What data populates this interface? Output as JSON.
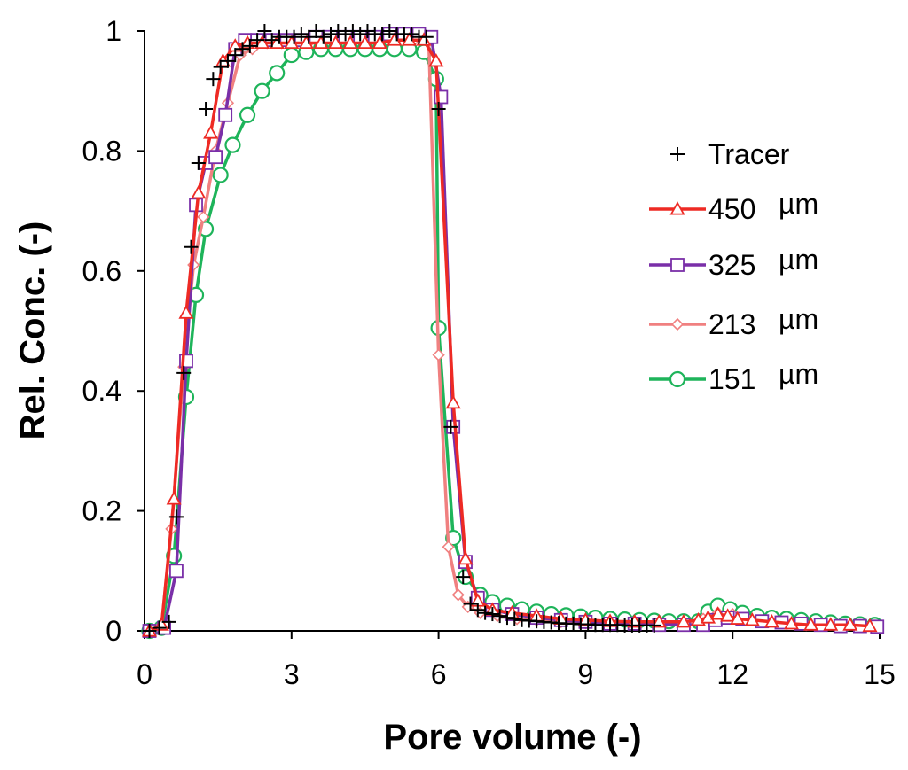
{
  "chart_data": {
    "type": "line",
    "title": "",
    "xlabel": "Pore volume (-)",
    "ylabel": "Rel. Conc. (-)",
    "xlim": [
      0,
      15
    ],
    "ylim": [
      0,
      1
    ],
    "xticks": [
      0,
      3,
      6,
      9,
      12,
      15
    ],
    "yticks": [
      0,
      0.2,
      0.4,
      0.6,
      0.8,
      1
    ],
    "xtick_labels": [
      "0",
      "3",
      "6",
      "9",
      "12",
      "15"
    ],
    "ytick_labels": [
      "0",
      "0.2",
      "0.4",
      "0.6",
      "0.8",
      "1"
    ],
    "grid": false,
    "legend_position": "right",
    "legend_unit": "µm",
    "series": [
      {
        "name": "Tracer",
        "label_number": "",
        "label_unit": "",
        "color": "#000000",
        "marker": "plus",
        "line": false,
        "x": [
          0.1,
          0.3,
          0.5,
          0.65,
          0.8,
          0.95,
          1.1,
          1.25,
          1.4,
          1.55,
          1.7,
          1.85,
          2.0,
          2.15,
          2.3,
          2.45,
          2.6,
          2.75,
          2.9,
          3.05,
          3.2,
          3.35,
          3.5,
          3.65,
          3.8,
          3.95,
          4.1,
          4.25,
          4.4,
          4.55,
          4.7,
          4.85,
          5.0,
          5.15,
          5.3,
          5.45,
          5.6,
          5.75,
          6.0,
          6.25,
          6.5,
          6.65,
          6.8,
          6.95,
          7.1,
          7.25,
          7.4,
          7.55,
          7.7,
          7.85,
          8.0,
          8.15,
          8.3,
          8.45,
          8.6,
          8.75,
          8.9,
          9.05,
          9.2,
          9.35,
          9.5,
          9.65,
          9.8,
          9.95,
          10.1,
          10.25,
          10.4
        ],
        "y": [
          0.0,
          0.005,
          0.015,
          0.19,
          0.43,
          0.64,
          0.78,
          0.87,
          0.92,
          0.94,
          0.95,
          0.96,
          0.97,
          0.975,
          0.985,
          1.0,
          0.985,
          0.99,
          0.99,
          0.99,
          0.995,
          0.99,
          1.0,
          0.99,
          0.995,
          1.0,
          0.995,
          1.0,
          0.995,
          1.0,
          0.995,
          0.995,
          1.0,
          0.995,
          0.995,
          0.995,
          0.99,
          0.99,
          0.87,
          0.34,
          0.09,
          0.045,
          0.035,
          0.03,
          0.028,
          0.025,
          0.022,
          0.02,
          0.018,
          0.017,
          0.016,
          0.015,
          0.014,
          0.013,
          0.012,
          0.012,
          0.011,
          0.011,
          0.01,
          0.01,
          0.01,
          0.01,
          0.009,
          0.009,
          0.009,
          0.009,
          0.009
        ]
      },
      {
        "name": "450 µm",
        "label_number": "450",
        "label_unit": "µm",
        "color": "#ee2a24",
        "marker": "triangle",
        "line": true,
        "x": [
          0.1,
          0.35,
          0.6,
          0.85,
          1.1,
          1.35,
          1.6,
          1.85,
          2.1,
          2.4,
          2.7,
          3.0,
          3.3,
          3.6,
          3.9,
          4.2,
          4.5,
          4.8,
          5.1,
          5.4,
          5.7,
          5.95,
          6.3,
          6.55,
          6.8,
          7.1,
          7.5,
          8.0,
          8.5,
          9.0,
          9.5,
          10.0,
          10.5,
          11.0,
          11.3,
          11.5,
          11.7,
          11.9,
          12.1,
          12.4,
          12.8,
          13.2,
          13.6,
          14.0,
          14.4,
          14.8
        ],
        "y": [
          0.0,
          0.01,
          0.22,
          0.53,
          0.73,
          0.83,
          0.95,
          0.975,
          0.98,
          0.98,
          0.98,
          0.98,
          0.98,
          0.98,
          0.98,
          0.98,
          0.98,
          0.98,
          0.985,
          0.985,
          0.985,
          0.95,
          0.38,
          0.12,
          0.05,
          0.035,
          0.03,
          0.025,
          0.02,
          0.018,
          0.016,
          0.015,
          0.015,
          0.015,
          0.018,
          0.022,
          0.028,
          0.025,
          0.02,
          0.018,
          0.015,
          0.012,
          0.01,
          0.01,
          0.01,
          0.008
        ]
      },
      {
        "name": "325 µm",
        "label_number": "325",
        "label_unit": "µm",
        "color": "#7a2fa8",
        "marker": "square",
        "line": true,
        "x": [
          0.1,
          0.4,
          0.65,
          0.85,
          1.05,
          1.25,
          1.45,
          1.65,
          1.85,
          2.05,
          2.3,
          2.6,
          2.9,
          3.2,
          3.5,
          3.8,
          4.1,
          4.4,
          4.7,
          5.0,
          5.3,
          5.6,
          5.85,
          6.05,
          6.3,
          6.55,
          6.8,
          7.1,
          7.5,
          8.0,
          8.5,
          9.0,
          9.5,
          10.0,
          10.5,
          11.0,
          11.4,
          11.65,
          11.9,
          12.2,
          12.6,
          13.0,
          13.4,
          13.8,
          14.2,
          14.6,
          14.95
        ],
        "y": [
          0.0,
          0.005,
          0.1,
          0.45,
          0.71,
          0.78,
          0.79,
          0.86,
          0.97,
          0.985,
          0.985,
          0.985,
          0.985,
          0.985,
          0.99,
          0.99,
          0.99,
          0.99,
          0.99,
          0.995,
          0.995,
          0.995,
          0.99,
          0.89,
          0.34,
          0.115,
          0.055,
          0.035,
          0.028,
          0.022,
          0.018,
          0.015,
          0.012,
          0.012,
          0.01,
          0.01,
          0.01,
          0.018,
          0.022,
          0.02,
          0.016,
          0.014,
          0.012,
          0.01,
          0.008,
          0.008,
          0.007
        ]
      },
      {
        "name": "213 µm",
        "label_number": "213",
        "label_unit": "µm",
        "color": "#f08080",
        "marker": "diamond",
        "line": true,
        "x": [
          0.1,
          0.35,
          0.55,
          0.8,
          1.0,
          1.2,
          1.45,
          1.7,
          1.95,
          2.2,
          2.5,
          2.8,
          3.1,
          3.4,
          3.7,
          4.0,
          4.3,
          4.6,
          4.9,
          5.2,
          5.5,
          5.8,
          6.0,
          6.2,
          6.4,
          6.6,
          6.85,
          7.2,
          7.6,
          8.0,
          8.5,
          9.0,
          9.5,
          10.0,
          10.5,
          11.0,
          11.4,
          11.7,
          12.0,
          12.3,
          12.7,
          13.1,
          13.5,
          13.9,
          14.3,
          14.7
        ],
        "y": [
          0.0,
          0.01,
          0.17,
          0.44,
          0.61,
          0.69,
          0.8,
          0.88,
          0.96,
          0.97,
          0.98,
          0.98,
          0.985,
          0.985,
          0.99,
          0.99,
          0.99,
          0.99,
          0.99,
          0.99,
          0.985,
          0.985,
          0.46,
          0.14,
          0.06,
          0.04,
          0.03,
          0.025,
          0.02,
          0.018,
          0.015,
          0.013,
          0.012,
          0.011,
          0.01,
          0.01,
          0.02,
          0.03,
          0.028,
          0.02,
          0.015,
          0.012,
          0.01,
          0.009,
          0.008,
          0.008
        ]
      },
      {
        "name": "151 µm",
        "label_number": "151",
        "label_unit": "µm",
        "color": "#1eb45a",
        "marker": "circle",
        "line": true,
        "x": [
          0.1,
          0.35,
          0.6,
          0.85,
          1.05,
          1.25,
          1.55,
          1.8,
          2.1,
          2.4,
          2.7,
          3.0,
          3.3,
          3.6,
          3.9,
          4.2,
          4.5,
          4.8,
          5.1,
          5.4,
          5.7,
          5.95,
          6.0,
          6.3,
          6.55,
          6.85,
          7.1,
          7.4,
          7.7,
          8.0,
          8.3,
          8.6,
          8.9,
          9.2,
          9.5,
          9.8,
          10.1,
          10.4,
          10.7,
          11.0,
          11.3,
          11.5,
          11.7,
          11.95,
          12.2,
          12.5,
          12.8,
          13.1,
          13.4,
          13.7,
          14.0,
          14.3,
          14.6,
          14.9
        ],
        "y": [
          0.0,
          0.005,
          0.125,
          0.39,
          0.56,
          0.67,
          0.76,
          0.81,
          0.86,
          0.9,
          0.93,
          0.96,
          0.965,
          0.97,
          0.97,
          0.97,
          0.97,
          0.97,
          0.97,
          0.97,
          0.965,
          0.92,
          0.505,
          0.155,
          0.09,
          0.06,
          0.048,
          0.042,
          0.036,
          0.032,
          0.028,
          0.026,
          0.024,
          0.022,
          0.02,
          0.019,
          0.018,
          0.017,
          0.016,
          0.016,
          0.016,
          0.032,
          0.042,
          0.036,
          0.03,
          0.025,
          0.022,
          0.02,
          0.018,
          0.016,
          0.014,
          0.012,
          0.011,
          0.01
        ]
      }
    ]
  }
}
